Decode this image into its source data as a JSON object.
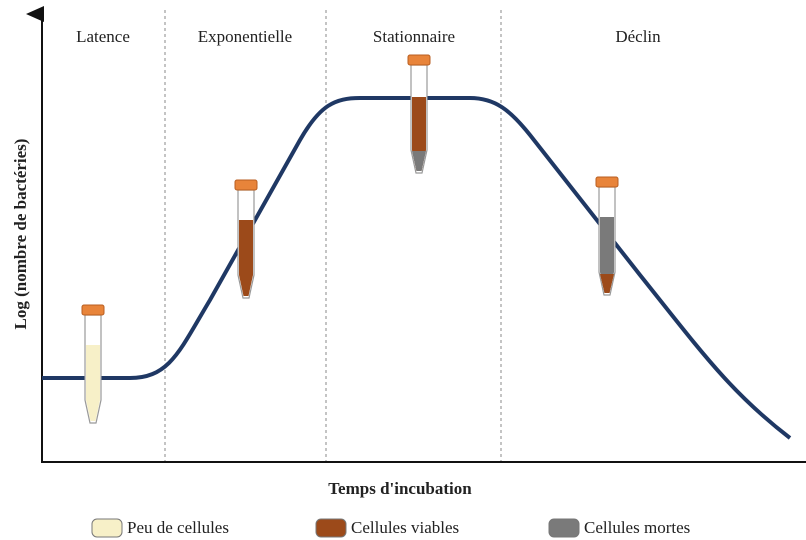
{
  "phases": [
    "Latence",
    "Exponentielle",
    "Stationnaire",
    "Déclin"
  ],
  "axes": {
    "x_label": "Temps d'incubation",
    "y_label": "Log (nombre de bactéries)"
  },
  "legend": [
    {
      "label": "Peu de cellules",
      "color": "#f7f0c8"
    },
    {
      "label": "Cellules viables",
      "color": "#9c4a1a"
    },
    {
      "label": "Cellules mortes",
      "color": "#7a7a7a"
    }
  ]
}
